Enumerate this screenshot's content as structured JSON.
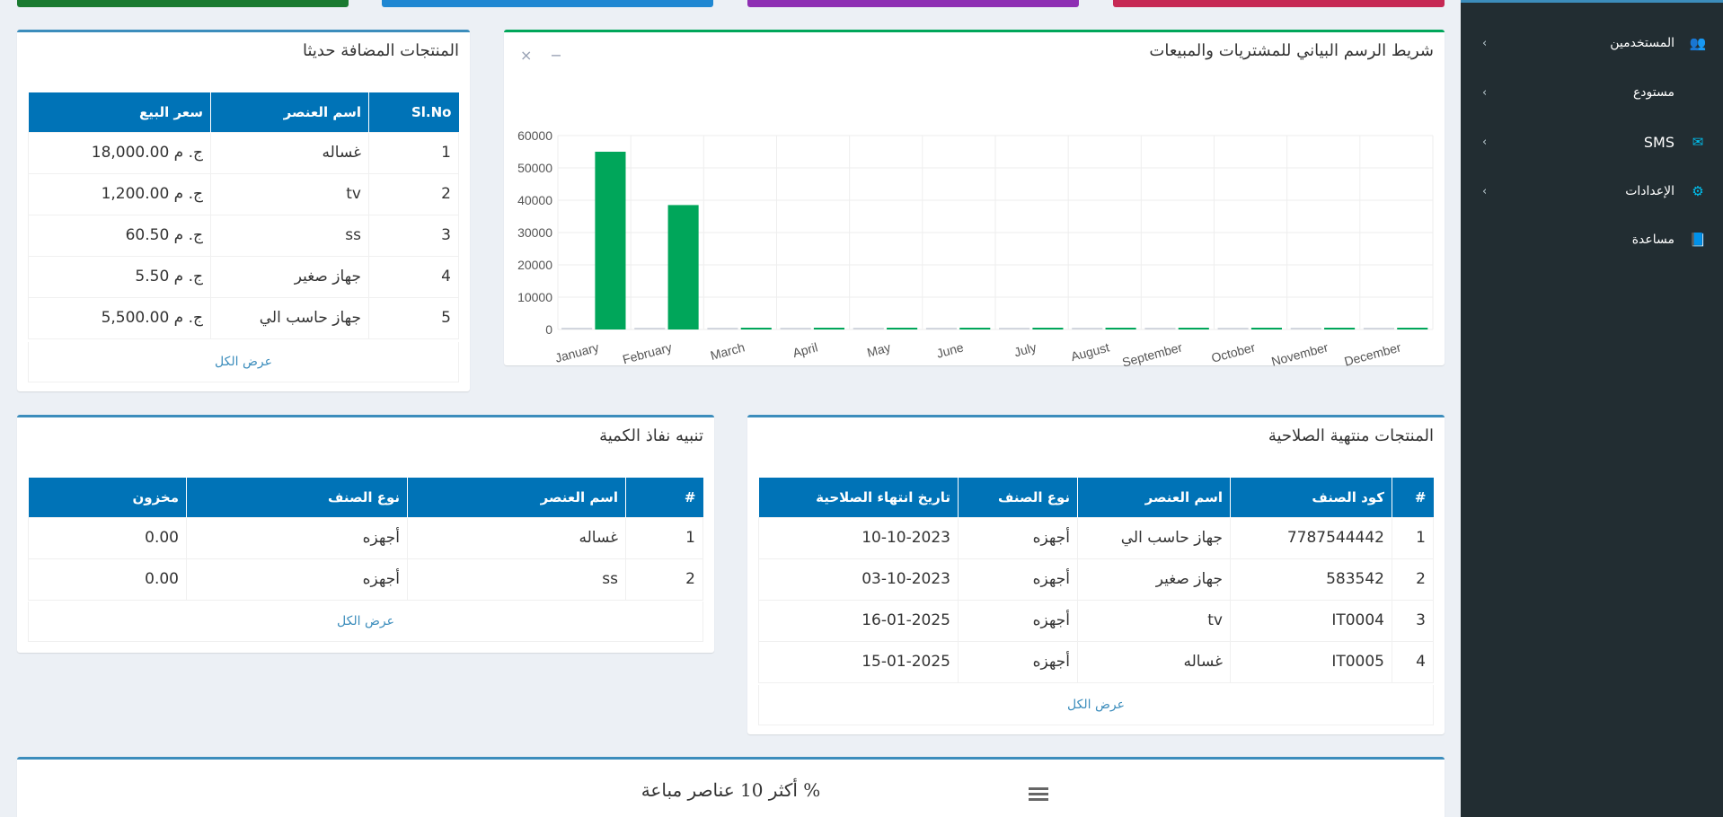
{
  "sidebar": {
    "items": [
      {
        "label": "المستخدمين",
        "icon": "users-icon",
        "glyph": "👥"
      },
      {
        "label": "مستودع",
        "icon": "",
        "glyph": ""
      },
      {
        "label": "SMS",
        "icon": "envelope-icon",
        "glyph": "✉"
      },
      {
        "label": "الإعدادات",
        "icon": "cogs-icon",
        "glyph": "⚙"
      },
      {
        "label": "مساعدة",
        "icon": "book-icon",
        "glyph": "📘"
      }
    ],
    "chevron": "‹"
  },
  "chart_box": {
    "title": "شريط الرسم البياني للمشتريات والمبيعات",
    "close_glyph": "×",
    "minimize_glyph": "−"
  },
  "chart_data": {
    "type": "bar",
    "categories": [
      "January",
      "February",
      "March",
      "April",
      "May",
      "June",
      "July",
      "August",
      "September",
      "October",
      "November",
      "December"
    ],
    "series": [
      {
        "values": [
          0,
          0,
          0,
          0,
          0,
          0,
          0,
          0,
          0,
          0,
          0,
          0
        ],
        "color": "#d2d6de"
      },
      {
        "values": [
          55000,
          38500,
          0,
          0,
          0,
          0,
          0,
          0,
          0,
          0,
          0,
          0
        ],
        "color": "#00a65a"
      }
    ],
    "yticks": [
      "60000",
      "50000",
      "40000",
      "30000",
      "20000",
      "10000",
      "0"
    ],
    "ylim": [
      0,
      60000
    ]
  },
  "recent": {
    "title": "المنتجات المضافة حديثا",
    "headers": [
      "Sl.No",
      "اسم العنصر",
      "سعر البيع"
    ],
    "rows": [
      [
        "1",
        "غساله",
        "ج. م 18,000.00"
      ],
      [
        "2",
        "tv",
        "ج. م 1,200.00"
      ],
      [
        "3",
        "ss",
        "ج. م 60.50"
      ],
      [
        "4",
        "جهاز صغير",
        "ج. م 5.50"
      ],
      [
        "5",
        "جهاز حاسب الي",
        "ج. م 5,500.00"
      ]
    ],
    "view_all": "عرض الكل"
  },
  "expired": {
    "title": "المنتجات منتهية الصلاحية",
    "headers": [
      "#",
      "كود الصنف",
      "اسم العنصر",
      "نوع الصنف",
      "تاريخ انتهاء الصلاحية"
    ],
    "rows": [
      [
        "1",
        "7787544442",
        "جهاز حاسب الي",
        "أجهزه",
        "10-10-2023"
      ],
      [
        "2",
        "583542",
        "جهاز صغير",
        "أجهزه",
        "03-10-2023"
      ],
      [
        "3",
        "IT0004",
        "tv",
        "أجهزه",
        "16-01-2025"
      ],
      [
        "4",
        "IT0005",
        "غساله",
        "أجهزه",
        "15-01-2025"
      ]
    ],
    "view_all": "عرض الكل"
  },
  "stock_alert": {
    "title": "تنبيه نفاذ الكمية",
    "headers": [
      "#",
      "اسم العنصر",
      "نوع الصنف",
      "مخزون"
    ],
    "rows": [
      [
        "1",
        "غساله",
        "أجهزه",
        "0.00"
      ],
      [
        "2",
        "ss",
        "أجهزه",
        "0.00"
      ]
    ],
    "view_all": "عرض الكل"
  },
  "top_items": {
    "title": "% أكثر 10 عناصر مباعة"
  },
  "colors": {
    "topbars": [
      "#00a65a",
      "#0073b7",
      "#605ca8",
      "#dd4b39"
    ]
  }
}
